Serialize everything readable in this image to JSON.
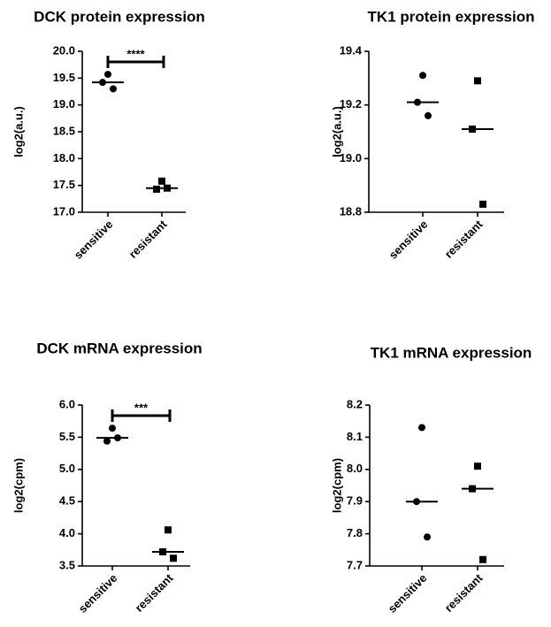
{
  "chart_data": [
    {
      "type": "scatter",
      "title": "DCK protein expression",
      "ylabel": "log2(a.u.)",
      "categories": [
        "sensitive",
        "resistant"
      ],
      "values": [
        [
          19.57,
          19.42,
          19.3
        ],
        [
          17.58,
          17.43,
          17.45
        ]
      ],
      "medians": [
        19.42,
        17.45
      ],
      "markers": [
        "circle",
        "square"
      ],
      "color": "#000000",
      "ylim": [
        17.0,
        20.0
      ],
      "yticks": [
        {
          "value": 17,
          "label": "17.0"
        },
        {
          "value": 17.5,
          "label": "17.5"
        },
        {
          "value": 18,
          "label": "18.0"
        },
        {
          "value": 18.5,
          "label": "18.5"
        },
        {
          "value": 19,
          "label": "19.0"
        },
        {
          "value": 19.5,
          "label": "19.5"
        },
        {
          "value": 20,
          "label": "20.0"
        }
      ],
      "significance": "****"
    },
    {
      "type": "scatter",
      "title": "TK1 protein expression",
      "ylabel": "log2(a.u.)",
      "categories": [
        "sensitive",
        "resistant"
      ],
      "values": [
        [
          19.31,
          19.21,
          19.16
        ],
        [
          19.29,
          19.11,
          18.83
        ]
      ],
      "medians": [
        19.21,
        19.11
      ],
      "markers": [
        "circle",
        "square"
      ],
      "color": "#000000",
      "ylim": [
        18.8,
        19.4
      ],
      "yticks": [
        18.8,
        {
          "value": 19,
          "label": "19.0"
        },
        19.2,
        19.4
      ]
    },
    {
      "type": "scatter",
      "title": "DCK mRNA expression",
      "ylabel": "log2(cpm)",
      "categories": [
        "sensitive",
        "resistant"
      ],
      "values": [
        [
          5.64,
          5.44,
          5.49
        ],
        [
          4.06,
          3.72,
          3.62
        ]
      ],
      "medians": [
        5.49,
        3.72
      ],
      "markers": [
        "circle",
        "square"
      ],
      "color": "#000000",
      "ylim": [
        3.5,
        6.0
      ],
      "yticks": [
        3.5,
        {
          "value": 4,
          "label": "4.0"
        },
        4.5,
        {
          "value": 5,
          "label": "5.0"
        },
        5.5,
        {
          "value": 6,
          "label": "6.0"
        }
      ],
      "significance": "***"
    },
    {
      "type": "scatter",
      "title": "TK1 mRNA expression",
      "ylabel": "log2(cpm)",
      "categories": [
        "sensitive",
        "resistant"
      ],
      "values": [
        [
          8.13,
          7.9,
          7.79
        ],
        [
          8.01,
          7.94,
          7.72
        ]
      ],
      "medians": [
        7.9,
        7.94
      ],
      "markers": [
        "circle",
        "square"
      ],
      "color": "#000000",
      "ylim": [
        7.7,
        8.2
      ],
      "yticks": [
        7.7,
        7.8,
        7.9,
        {
          "value": 8,
          "label": "8.0"
        },
        8.1,
        8.2
      ]
    }
  ]
}
